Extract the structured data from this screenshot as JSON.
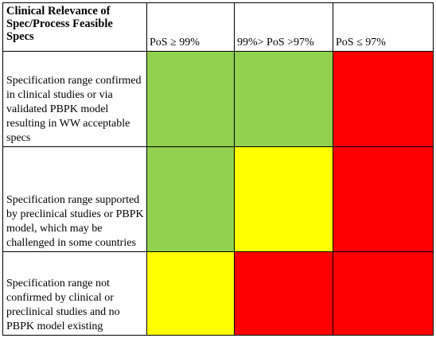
{
  "matrix": {
    "corner_lines": [
      "Clinical Relevance of",
      "Spec/Process Feasible",
      "Specs"
    ],
    "columns": [
      "PoS ≥ 99%",
      "99%> PoS >97%",
      "PoS ≤ 97%"
    ],
    "colors": {
      "green": "#92d050",
      "yellow": "#ffff00",
      "red": "#ff0000"
    },
    "rows": [
      {
        "label": "Specification range confirmed in clinical studies or via validated PBPK model resulting in WW acceptable specs",
        "cells": [
          "green",
          "green",
          "red"
        ]
      },
      {
        "label": "Specification range supported by preclinical studies or PBPK model, which may be challenged in some countries",
        "cells": [
          "green",
          "yellow",
          "red"
        ]
      },
      {
        "label": "Specification range not confirmed by clinical or preclinical studies and no PBPK model existing",
        "cells": [
          "yellow",
          "red",
          "red"
        ]
      }
    ]
  }
}
